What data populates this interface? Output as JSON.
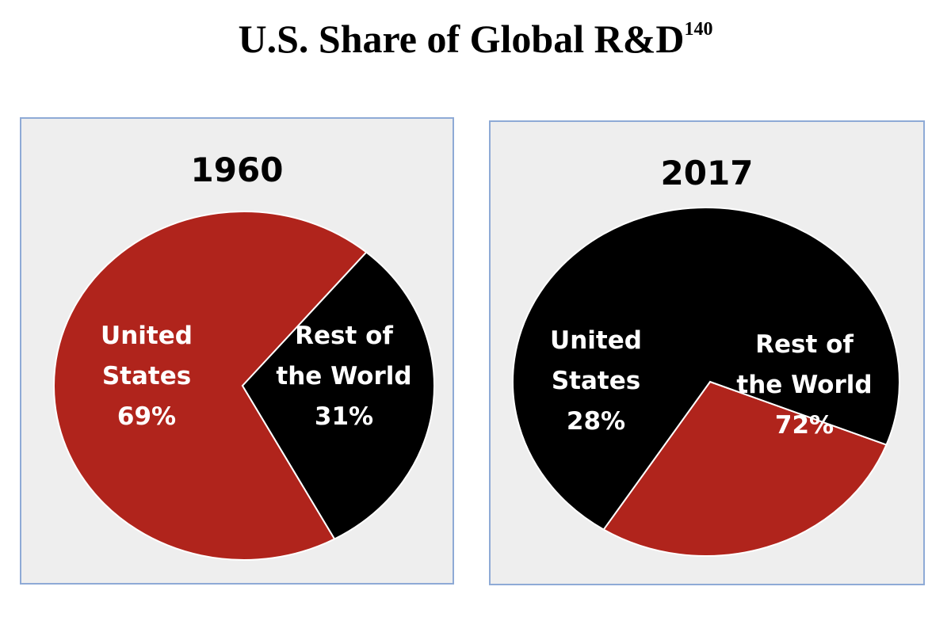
{
  "page": {
    "title": "U.S. Share of Global R&D",
    "title_footnote": "140"
  },
  "colors": {
    "united_states": "#b0241c",
    "rest_of_world": "#000000",
    "separator": "#ffffff"
  },
  "chart_data": [
    {
      "type": "pie",
      "title": "1960",
      "slices": [
        {
          "label_line1": "United",
          "label_line2": "States",
          "value_label": "69%",
          "value": 69,
          "color": "#b0241c"
        },
        {
          "label_line1": "Rest of",
          "label_line2": "the World",
          "value_label": "31%",
          "value": 31,
          "color": "#000000"
        }
      ]
    },
    {
      "type": "pie",
      "title": "2017",
      "slices": [
        {
          "label_line1": "United",
          "label_line2": "States",
          "value_label": "28%",
          "value": 28,
          "color": "#b0241c"
        },
        {
          "label_line1": "Rest of",
          "label_line2": "the World",
          "value_label": "72%",
          "value": 72,
          "color": "#000000"
        }
      ]
    }
  ]
}
